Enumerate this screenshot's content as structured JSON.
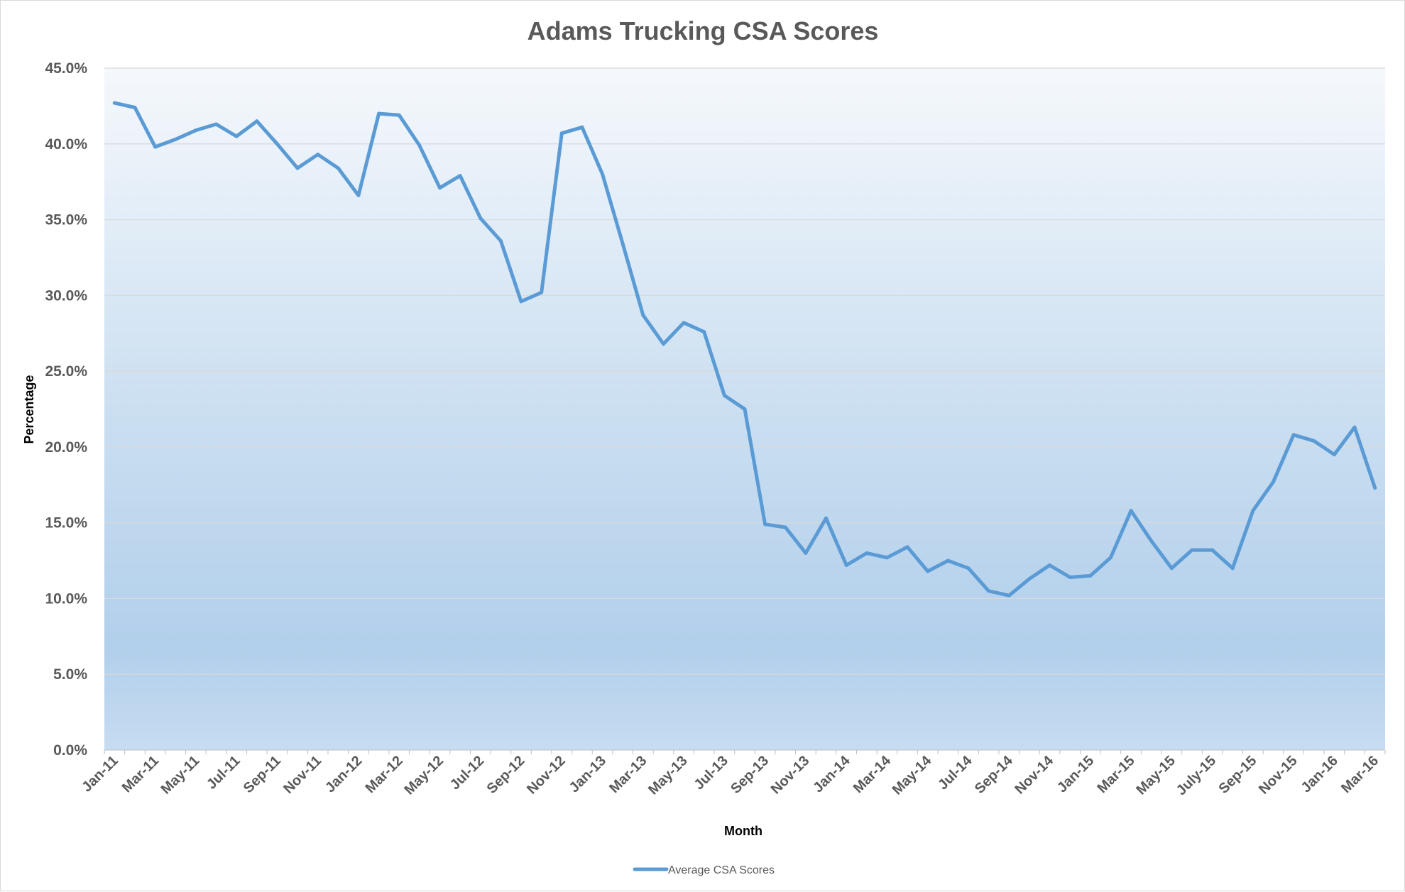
{
  "chart_data": {
    "type": "line",
    "title": "Adams Trucking CSA Scores",
    "xlabel": "Month",
    "ylabel": "Percentage",
    "ylim": [
      0,
      45
    ],
    "ytick_step": 5,
    "ytick_format": "percent-1dp",
    "grid": true,
    "legend_position": "bottom",
    "x_tick_labels": [
      "Jan-11",
      "Mar-11",
      "May-11",
      "Jul-11",
      "Sep-11",
      "Nov-11",
      "Jan-12",
      "Mar-12",
      "May-12",
      "Jul-12",
      "Sep-12",
      "Nov-12",
      "Jan-13",
      "Mar-13",
      "May-13",
      "Jul-13",
      "Sep-13",
      "Nov-13",
      "Jan-14",
      "Mar-14",
      "May-14",
      "Jul-14",
      "Sep-14",
      "Nov-14",
      "Jan-15",
      "Mar-15",
      "May-15",
      "July-15",
      "Sep-15",
      "Nov-15",
      "Jan-16",
      "Mar-16"
    ],
    "series": [
      {
        "name": "Average CSA Scores",
        "color": "#5b9bd5",
        "values": [
          42.7,
          42.4,
          39.8,
          40.3,
          40.9,
          41.3,
          40.5,
          41.5,
          40.0,
          38.4,
          39.3,
          38.4,
          36.6,
          42.0,
          41.9,
          39.9,
          37.1,
          37.9,
          35.1,
          33.6,
          29.6,
          30.2,
          40.7,
          41.1,
          38.0,
          33.4,
          28.7,
          26.8,
          28.2,
          27.6,
          23.4,
          22.5,
          14.9,
          14.7,
          13.0,
          15.3,
          12.2,
          13.0,
          12.7,
          13.4,
          11.8,
          12.5,
          12.0,
          10.5,
          10.2,
          11.3,
          12.2,
          11.4,
          11.5,
          12.7,
          15.8,
          13.8,
          12.0,
          13.2,
          13.2,
          12.0,
          15.8,
          17.7,
          20.8,
          20.4,
          19.5,
          21.3,
          17.3
        ]
      }
    ]
  }
}
